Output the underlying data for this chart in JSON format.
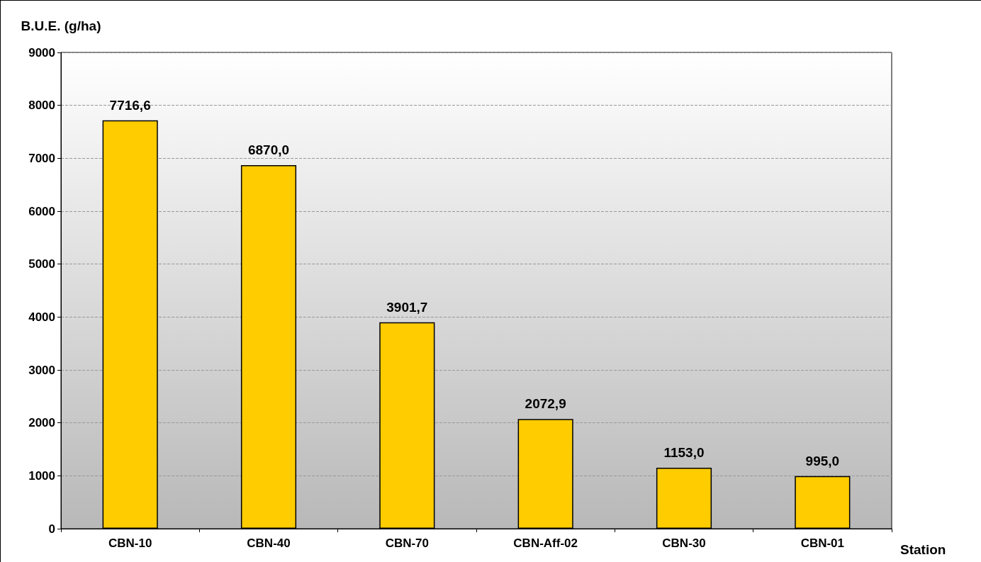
{
  "chart_data": {
    "type": "bar",
    "xlabel": "Station",
    "ylabel": "B.U.E. (g/ha)",
    "categories": [
      "CBN-10",
      "CBN-40",
      "CBN-70",
      "CBN-Aff-02",
      "CBN-30",
      "CBN-01"
    ],
    "values": [
      7716.6,
      6870.0,
      3901.7,
      2072.9,
      1153.0,
      995.0
    ],
    "value_labels": [
      "7716,6",
      "6870,0",
      "3901,7",
      "2072,9",
      "1153,0",
      "995,0"
    ],
    "color": "#ffcc00",
    "ylim": [
      0,
      9000
    ],
    "yticks": [
      0,
      1000,
      2000,
      3000,
      4000,
      5000,
      6000,
      7000,
      8000,
      9000
    ],
    "grid": "y"
  }
}
